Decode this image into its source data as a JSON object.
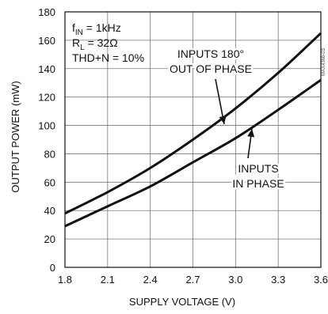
{
  "chart_data": {
    "type": "line",
    "xlabel": "SUPPLY VOLTAGE (V)",
    "ylabel": "OUTPUT POWER (mW)",
    "xlim": [
      1.8,
      3.6
    ],
    "ylim": [
      0,
      180
    ],
    "xticks": [
      1.8,
      2.1,
      2.4,
      2.7,
      3.0,
      3.3,
      3.6
    ],
    "xtick_labels": [
      "1.8",
      "2.1",
      "2.4",
      "2.7",
      "3.0",
      "3.3",
      "3.6"
    ],
    "yticks": [
      0,
      20,
      40,
      60,
      80,
      100,
      120,
      140,
      160,
      180
    ],
    "grid": true,
    "conditions": [
      {
        "prefix": "f",
        "sub": "IN",
        "rest": " = 1kHz"
      },
      {
        "prefix": "R",
        "sub": "L",
        "rest": " = 32Ω"
      },
      {
        "prefix": "THD+N = 10%",
        "sub": "",
        "rest": ""
      }
    ],
    "series": [
      {
        "label_lines": [
          "INPUTS 180°",
          "OUT OF PHASE"
        ],
        "x": [
          1.8,
          2.1,
          2.4,
          2.7,
          3.0,
          3.3,
          3.6
        ],
        "y": [
          38,
          53,
          70,
          90,
          112,
          137,
          165
        ]
      },
      {
        "label_lines": [
          "INPUTS",
          "IN PHASE"
        ],
        "x": [
          1.8,
          2.1,
          2.4,
          2.7,
          3.0,
          3.3,
          3.6
        ],
        "y": [
          29,
          43,
          57,
          74,
          91,
          111,
          132
        ]
      }
    ],
    "watermark": "MAX4366-03"
  }
}
